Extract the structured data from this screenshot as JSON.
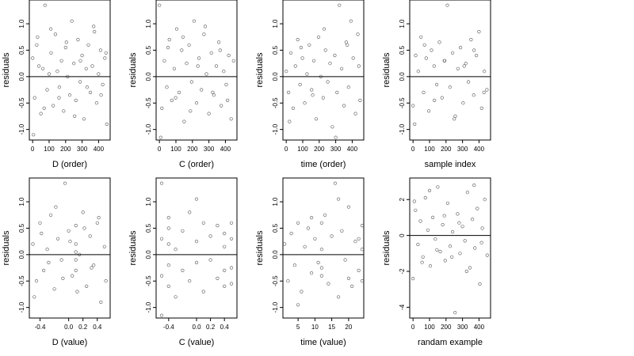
{
  "chart_data": [
    {
      "type": "scatter",
      "xlabel": "D (order)",
      "ylabel": "residuals",
      "xlim": [
        -20,
        470
      ],
      "ylim": [
        -1.2,
        1.45
      ],
      "xticks": [
        0,
        100,
        200,
        300,
        400
      ],
      "xtick_labels": [
        "0",
        "100",
        "200",
        "300",
        "400"
      ],
      "yticks": [
        -1.0,
        -0.5,
        0.0,
        0.5,
        1.0
      ],
      "ytick_labels": [
        "-1.0",
        "-0.5",
        "0.0",
        "0.5",
        "1.0"
      ],
      "reference_line_y": 0,
      "x": [
        0,
        12,
        25,
        38,
        50,
        62,
        75,
        88,
        100,
        112,
        125,
        138,
        150,
        162,
        175,
        188,
        200,
        212,
        225,
        238,
        250,
        262,
        275,
        288,
        300,
        312,
        325,
        338,
        350,
        362,
        375,
        388,
        400,
        412,
        425,
        438,
        450,
        5,
        30,
        70,
        110,
        160,
        205,
        255,
        290,
        330,
        370,
        415,
        445
      ],
      "y": [
        0.35,
        -0.4,
        0.6,
        0.2,
        -0.7,
        0.15,
        1.35,
        -0.25,
        0.05,
        0.45,
        -0.55,
        0.8,
        0.1,
        -0.2,
        0.3,
        -0.65,
        0.55,
        0.0,
        -0.35,
        1.05,
        0.25,
        -0.45,
        0.7,
        -0.1,
        0.4,
        -0.8,
        0.15,
        0.6,
        -0.3,
        0.2,
        0.85,
        -0.5,
        0.05,
        0.5,
        -0.15,
        0.35,
        -0.9,
        -1.1,
        0.75,
        -0.6,
        0.9,
        -0.4,
        0.65,
        -0.75,
        0.3,
        -0.2,
        0.95,
        -0.35,
        0.45
      ]
    },
    {
      "type": "scatter",
      "xlabel": "C (order)",
      "ylabel": "residuals",
      "xlim": [
        -20,
        470
      ],
      "ylim": [
        -1.2,
        1.45
      ],
      "xticks": [
        0,
        100,
        200,
        300,
        400
      ],
      "xtick_labels": [
        "0",
        "100",
        "200",
        "300",
        "400"
      ],
      "yticks": [
        -1.0,
        -0.5,
        0.0,
        0.5,
        1.0
      ],
      "ytick_labels": [
        "-1.0",
        "-0.5",
        "0.0",
        "0.5",
        "1.0"
      ],
      "reference_line_y": 0,
      "x": [
        0,
        15,
        30,
        45,
        60,
        75,
        90,
        105,
        120,
        135,
        150,
        165,
        180,
        195,
        210,
        225,
        240,
        255,
        270,
        285,
        300,
        315,
        330,
        345,
        360,
        375,
        390,
        405,
        420,
        435,
        450,
        8,
        52,
        98,
        143,
        188,
        233,
        278,
        323,
        368,
        413
      ],
      "y": [
        1.35,
        -0.6,
        0.3,
        -0.2,
        0.7,
        -0.45,
        0.15,
        0.9,
        -0.3,
        0.5,
        -0.85,
        0.25,
        0.6,
        -0.1,
        1.05,
        -0.5,
        0.35,
        -0.25,
        0.8,
        0.05,
        -0.7,
        0.45,
        -0.35,
        0.2,
        0.65,
        -0.55,
        0.1,
        -0.15,
        0.4,
        -0.8,
        0.3,
        -1.15,
        0.55,
        -0.4,
        0.75,
        -0.65,
        0.2,
        0.95,
        -0.3,
        0.5,
        -0.45
      ]
    },
    {
      "type": "scatter",
      "xlabel": "time (order)",
      "ylabel": "residuals",
      "xlim": [
        -20,
        470
      ],
      "ylim": [
        -1.2,
        1.45
      ],
      "xticks": [
        0,
        100,
        200,
        300,
        400
      ],
      "xtick_labels": [
        "0",
        "100",
        "200",
        "300",
        "400"
      ],
      "yticks": [
        -1.0,
        -0.5,
        0.0,
        0.5,
        1.0
      ],
      "ytick_labels": [
        "-1.0",
        "-0.5",
        "0.0",
        "0.5",
        "1.0"
      ],
      "reference_line_y": 0,
      "x": [
        0,
        14,
        28,
        42,
        56,
        70,
        84,
        98,
        112,
        126,
        140,
        154,
        168,
        182,
        196,
        210,
        224,
        238,
        252,
        266,
        280,
        294,
        308,
        322,
        336,
        350,
        364,
        378,
        392,
        406,
        420,
        434,
        448,
        20,
        90,
        160,
        230,
        300,
        370,
        440
      ],
      "y": [
        0.1,
        -0.3,
        0.45,
        -0.6,
        0.2,
        0.7,
        -0.15,
        0.35,
        -0.5,
        0.05,
        0.6,
        -0.25,
        0.3,
        -0.8,
        0.75,
        0.0,
        -0.4,
        0.5,
        -0.1,
        0.25,
        -0.95,
        0.4,
        -0.3,
        1.35,
        0.15,
        -0.55,
        0.65,
        -0.2,
        1.05,
        0.35,
        -0.7,
        0.8,
        -0.45,
        -0.85,
        0.55,
        -0.35,
        0.9,
        -1.15,
        0.6,
        0.2
      ]
    },
    {
      "type": "scatter",
      "xlabel": "sample index",
      "ylabel": "residuals",
      "xlim": [
        -20,
        470
      ],
      "ylim": [
        -1.2,
        1.45
      ],
      "xticks": [
        0,
        100,
        200,
        300,
        400
      ],
      "xtick_labels": [
        "0",
        "100",
        "200",
        "300",
        "400"
      ],
      "yticks": [
        -1.0,
        -0.5,
        0.0,
        0.5,
        1.0
      ],
      "ytick_labels": [
        "-1.0",
        "-0.5",
        "0.0",
        "0.5",
        "1.0"
      ],
      "reference_line_y": 0,
      "x": [
        0,
        16,
        32,
        48,
        64,
        80,
        96,
        112,
        128,
        144,
        160,
        176,
        192,
        208,
        224,
        240,
        256,
        272,
        288,
        304,
        320,
        336,
        352,
        368,
        384,
        400,
        416,
        432,
        448,
        10,
        70,
        130,
        190,
        250,
        310,
        370,
        430
      ],
      "y": [
        -0.55,
        0.4,
        0.1,
        0.75,
        -0.3,
        0.35,
        -0.65,
        0.5,
        0.2,
        -0.15,
        0.65,
        -0.4,
        0.3,
        1.35,
        -0.2,
        0.45,
        -0.75,
        0.15,
        0.55,
        -0.5,
        0.25,
        -0.1,
        0.7,
        -0.35,
        0.4,
        0.85,
        -0.6,
        0.1,
        -0.25,
        -0.9,
        0.6,
        -0.45,
        0.3,
        -0.8,
        0.2,
        0.5,
        -0.3
      ]
    },
    {
      "type": "scatter",
      "xlabel": "D (value)",
      "ylabel": "residuals",
      "xlim": [
        -0.55,
        0.58
      ],
      "ylim": [
        -1.2,
        1.45
      ],
      "xticks": [
        -0.4,
        0.0,
        0.2,
        0.4
      ],
      "xtick_labels": [
        "-0.4",
        "0.0",
        "0.2",
        "0.4"
      ],
      "yticks": [
        -1.0,
        -0.5,
        0.0,
        0.5,
        1.0
      ],
      "ytick_labels": [
        "-1.0",
        "-0.5",
        "0.0",
        "0.5",
        "1.0"
      ],
      "reference_line_y": 0,
      "x": [
        -0.5,
        -0.45,
        -0.4,
        -0.35,
        -0.3,
        -0.25,
        -0.2,
        -0.15,
        -0.1,
        -0.05,
        0.0,
        0.05,
        0.1,
        0.1,
        0.1,
        0.15,
        0.2,
        0.25,
        0.3,
        0.35,
        0.4,
        0.45,
        0.5,
        -0.48,
        -0.38,
        -0.28,
        -0.18,
        -0.08,
        0.02,
        0.12,
        0.22,
        0.32,
        0.42,
        0.52,
        0.1,
        0.1
      ],
      "y": [
        0.2,
        -0.5,
        0.6,
        -0.3,
        0.1,
        0.75,
        -0.65,
        0.3,
        -0.1,
        1.35,
        0.45,
        -0.4,
        0.2,
        -0.3,
        0.55,
        0.0,
        0.8,
        -0.6,
        0.35,
        -0.2,
        0.6,
        -0.9,
        0.15,
        -0.8,
        0.4,
        -0.15,
        0.9,
        -0.45,
        0.25,
        -0.7,
        0.5,
        -0.25,
        0.7,
        -0.5,
        0.05,
        -0.1
      ]
    },
    {
      "type": "scatter",
      "xlabel": "C (value)",
      "ylabel": "residuals",
      "xlim": [
        -0.58,
        0.58
      ],
      "ylim": [
        -1.2,
        1.45
      ],
      "xticks": [
        -0.4,
        0.0,
        0.2,
        0.4
      ],
      "xtick_labels": [
        "-0.4",
        "0.0",
        "0.2",
        "0.4"
      ],
      "yticks": [
        -1.0,
        -0.5,
        0.0,
        0.5,
        1.0
      ],
      "ytick_labels": [
        "-1.0",
        "-0.5",
        "0.0",
        "0.5",
        "1.0"
      ],
      "reference_line_y": 0,
      "x": [
        -0.5,
        -0.5,
        -0.5,
        -0.4,
        -0.4,
        -0.4,
        -0.4,
        -0.4,
        -0.3,
        -0.3,
        -0.2,
        -0.2,
        -0.1,
        -0.1,
        0.0,
        0.0,
        0.1,
        0.1,
        0.2,
        0.2,
        0.3,
        0.3,
        0.4,
        0.4,
        0.4,
        0.4,
        0.5,
        0.5,
        0.5,
        -0.5,
        0.0,
        0.5
      ],
      "y": [
        0.3,
        -0.4,
        1.35,
        0.7,
        -0.6,
        0.2,
        -0.2,
        0.5,
        0.1,
        -0.8,
        0.45,
        -0.3,
        0.8,
        -0.5,
        0.25,
        -0.15,
        0.6,
        -0.7,
        0.35,
        -0.1,
        0.55,
        -0.45,
        0.4,
        -0.3,
        0.15,
        -0.6,
        0.3,
        -0.25,
        0.6,
        -1.15,
        1.05,
        -0.55
      ]
    },
    {
      "type": "scatter",
      "xlabel": "time (value)",
      "ylabel": "residuals",
      "xlim": [
        0.5,
        24.5
      ],
      "ylim": [
        -1.2,
        1.45
      ],
      "xticks": [
        5,
        10,
        15,
        20
      ],
      "xtick_labels": [
        "5",
        "10",
        "15",
        "20"
      ],
      "yticks": [
        -1.0,
        -0.5,
        0.0,
        0.5,
        1.0
      ],
      "ytick_labels": [
        "-1.0",
        "-0.5",
        "0.0",
        "0.5",
        "1.0"
      ],
      "reference_line_y": 0,
      "x": [
        1,
        2,
        3,
        4,
        5,
        6,
        7,
        8,
        9,
        10,
        11,
        12,
        12,
        12,
        13,
        14,
        15,
        16,
        17,
        18,
        19,
        20,
        21,
        22,
        23,
        24,
        24,
        24,
        5,
        9,
        12,
        17,
        20,
        23
      ],
      "y": [
        0.2,
        -0.5,
        0.4,
        -0.2,
        0.6,
        -0.7,
        0.15,
        0.5,
        -0.35,
        0.3,
        -0.15,
        0.6,
        -0.4,
        0.1,
        0.75,
        -0.55,
        0.35,
        1.35,
        -0.8,
        0.45,
        -0.1,
        0.9,
        -0.6,
        0.25,
        -0.3,
        0.55,
        -0.5,
        0.1,
        -0.95,
        0.7,
        -0.25,
        1.05,
        -0.45,
        0.3
      ]
    },
    {
      "type": "scatter",
      "xlabel": "randam example",
      "ylabel": "residuals",
      "xlim": [
        -20,
        470
      ],
      "ylim": [
        -4.6,
        3.2
      ],
      "xticks": [
        0,
        100,
        200,
        300,
        400
      ],
      "xtick_labels": [
        "0",
        "100",
        "200",
        "300",
        "400"
      ],
      "yticks": [
        -4,
        -2,
        0,
        2
      ],
      "ytick_labels": [
        "-4",
        "-2",
        "0",
        "2"
      ],
      "reference_line_y": 0,
      "x": [
        0,
        15,
        30,
        45,
        60,
        75,
        90,
        105,
        120,
        135,
        150,
        165,
        180,
        195,
        210,
        225,
        240,
        255,
        270,
        285,
        300,
        315,
        330,
        345,
        360,
        375,
        390,
        405,
        420,
        435,
        450,
        8,
        55,
        100,
        145,
        190,
        235,
        280,
        325,
        370,
        415
      ],
      "y": [
        -2.4,
        1.4,
        -0.5,
        0.8,
        -1.2,
        2.1,
        0.3,
        -1.7,
        1.0,
        -0.2,
        2.7,
        -0.9,
        0.6,
        -1.4,
        1.8,
        -0.6,
        0.2,
        -4.3,
        1.2,
        -1.0,
        0.5,
        -0.3,
        2.4,
        -1.8,
        0.9,
        -0.7,
        1.5,
        -2.7,
        0.4,
        2.0,
        -1.1,
        1.9,
        -1.5,
        2.5,
        -0.8,
        1.1,
        -1.2,
        0.7,
        -2.0,
        2.8,
        -0.4
      ]
    }
  ]
}
